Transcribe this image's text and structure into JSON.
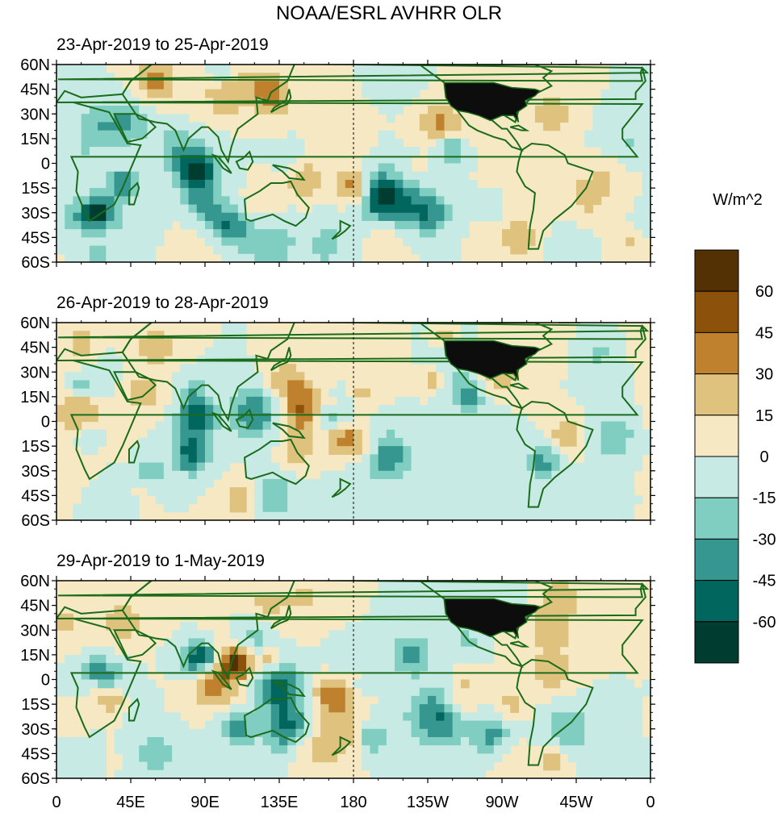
{
  "title": "NOAA/ESRL AVHRR OLR",
  "colorbar": {
    "unit_label": "W/m^2",
    "tick_labels": [
      "60",
      "45",
      "30",
      "15",
      "0",
      "-15",
      "-30",
      "-45",
      "-60"
    ],
    "levels": [
      75,
      60,
      45,
      30,
      15,
      0,
      -15,
      -30,
      -45,
      -60,
      -75
    ],
    "colors": [
      "#543005",
      "#8c510a",
      "#bf812d",
      "#dfc27d",
      "#f6e8c3",
      "#c7eae5",
      "#80cdc1",
      "#35978f",
      "#01665e",
      "#003c30"
    ]
  },
  "colors": {
    "coast": "#1a6b1a",
    "us_dark": "#0d0d0d",
    "grid": "#000000"
  },
  "chart_data": [
    {
      "type": "heatmap",
      "title": "23-Apr-2019 to 25-Apr-2019",
      "x_tick_labels": [
        "0",
        "45E",
        "90E",
        "135E",
        "180",
        "135W",
        "90W",
        "45W",
        "0"
      ],
      "y_tick_labels": [
        "60N",
        "45N",
        "30N",
        "15N",
        "0",
        "15S",
        "30S",
        "45S",
        "60S"
      ],
      "lon_range": [
        0,
        360
      ],
      "lat_range": [
        -60,
        60
      ],
      "seed": 11,
      "anomalies": [
        {
          "lon": 85,
          "lat": -3,
          "r": 10,
          "v": -65
        },
        {
          "lon": 25,
          "lat": -30,
          "r": 7,
          "v": -55
        },
        {
          "lon": 40,
          "lat": -12,
          "r": 6,
          "v": -45
        },
        {
          "lon": 200,
          "lat": -20,
          "r": 12,
          "v": -50
        },
        {
          "lon": 225,
          "lat": -30,
          "r": 9,
          "v": -45
        },
        {
          "lon": 240,
          "lat": 10,
          "r": 6,
          "v": -40
        },
        {
          "lon": 150,
          "lat": -10,
          "r": 7,
          "v": 35
        },
        {
          "lon": 180,
          "lat": -15,
          "r": 7,
          "v": 40
        },
        {
          "lon": 60,
          "lat": 50,
          "r": 9,
          "v": 38
        },
        {
          "lon": 130,
          "lat": 40,
          "r": 8,
          "v": 30
        },
        {
          "lon": 300,
          "lat": 30,
          "r": 10,
          "v": 25
        },
        {
          "lon": 230,
          "lat": 25,
          "r": 8,
          "v": 28
        },
        {
          "lon": 320,
          "lat": -20,
          "r": 7,
          "v": 25
        },
        {
          "lon": 100,
          "lat": -35,
          "r": 8,
          "v": -35
        },
        {
          "lon": 130,
          "lat": -50,
          "r": 10,
          "v": -30
        },
        {
          "lon": 280,
          "lat": -45,
          "r": 9,
          "v": 28
        }
      ]
    },
    {
      "type": "heatmap",
      "title": "26-Apr-2019 to 28-Apr-2019",
      "x_tick_labels": [
        "0",
        "45E",
        "90E",
        "135E",
        "180",
        "135W",
        "90W",
        "45W",
        "0"
      ],
      "y_tick_labels": [
        "60N",
        "45N",
        "30N",
        "15N",
        "0",
        "15S",
        "30S",
        "45S",
        "60S"
      ],
      "lon_range": [
        0,
        360
      ],
      "lat_range": [
        -60,
        60
      ],
      "seed": 23,
      "anomalies": [
        {
          "lon": 85,
          "lat": 2,
          "r": 8,
          "v": -60
        },
        {
          "lon": 82,
          "lat": -20,
          "r": 8,
          "v": -55
        },
        {
          "lon": 120,
          "lat": 5,
          "r": 10,
          "v": -45
        },
        {
          "lon": 165,
          "lat": 5,
          "r": 8,
          "v": -40
        },
        {
          "lon": 200,
          "lat": -22,
          "r": 10,
          "v": -45
        },
        {
          "lon": 250,
          "lat": 15,
          "r": 7,
          "v": -40
        },
        {
          "lon": 295,
          "lat": -25,
          "r": 8,
          "v": -35
        },
        {
          "lon": 175,
          "lat": -12,
          "r": 8,
          "v": 45
        },
        {
          "lon": 140,
          "lat": 25,
          "r": 8,
          "v": 30
        },
        {
          "lon": 15,
          "lat": 5,
          "r": 9,
          "v": 25
        },
        {
          "lon": 310,
          "lat": -10,
          "r": 8,
          "v": 30
        },
        {
          "lon": 60,
          "lat": 45,
          "r": 8,
          "v": 25
        },
        {
          "lon": 130,
          "lat": -45,
          "r": 10,
          "v": -30
        },
        {
          "lon": 40,
          "lat": -40,
          "r": 8,
          "v": -30
        },
        {
          "lon": 270,
          "lat": 30,
          "r": 9,
          "v": 25
        }
      ]
    },
    {
      "type": "heatmap",
      "title": "29-Apr-2019 to 1-May-2019",
      "x_tick_labels": [
        "0",
        "45E",
        "90E",
        "135E",
        "180",
        "135W",
        "90W",
        "45W",
        "0"
      ],
      "y_tick_labels": [
        "60N",
        "45N",
        "30N",
        "15N",
        "0",
        "15S",
        "30S",
        "45S",
        "60S"
      ],
      "lon_range": [
        0,
        360
      ],
      "lat_range": [
        -60,
        60
      ],
      "seed": 37,
      "anomalies": [
        {
          "lon": 85,
          "lat": 12,
          "r": 8,
          "v": -60
        },
        {
          "lon": 135,
          "lat": -5,
          "r": 10,
          "v": -55
        },
        {
          "lon": 140,
          "lat": -30,
          "r": 10,
          "v": -50
        },
        {
          "lon": 110,
          "lat": -30,
          "r": 7,
          "v": -40
        },
        {
          "lon": 215,
          "lat": 15,
          "r": 8,
          "v": -45
        },
        {
          "lon": 230,
          "lat": -22,
          "r": 12,
          "v": -45
        },
        {
          "lon": 265,
          "lat": -35,
          "r": 8,
          "v": -40
        },
        {
          "lon": 190,
          "lat": -35,
          "r": 8,
          "v": -35
        },
        {
          "lon": 25,
          "lat": 5,
          "r": 7,
          "v": -35
        },
        {
          "lon": 95,
          "lat": -2,
          "r": 10,
          "v": 35
        },
        {
          "lon": 170,
          "lat": -12,
          "r": 8,
          "v": 30
        },
        {
          "lon": 300,
          "lat": 5,
          "r": 9,
          "v": 30
        },
        {
          "lon": 40,
          "lat": 35,
          "r": 8,
          "v": 25
        },
        {
          "lon": 300,
          "lat": 30,
          "r": 9,
          "v": 25
        },
        {
          "lon": 60,
          "lat": -45,
          "r": 9,
          "v": -25
        }
      ]
    }
  ]
}
